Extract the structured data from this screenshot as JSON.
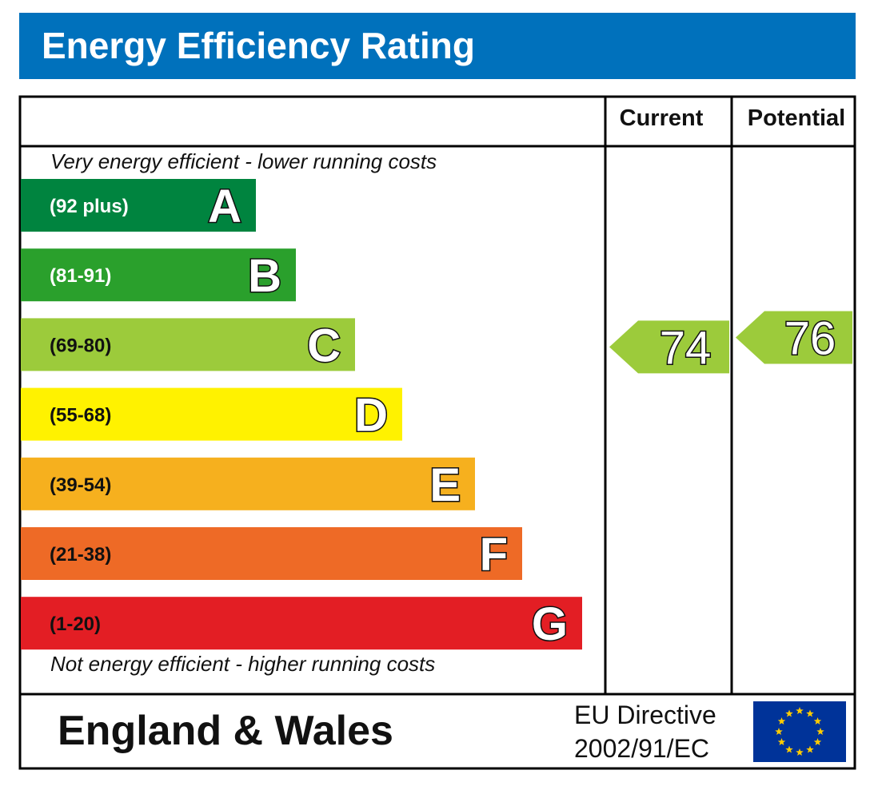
{
  "header": {
    "title": "Energy Efficiency Rating"
  },
  "columns": {
    "current": "Current",
    "potential": "Potential"
  },
  "top_note": "Very energy efficient - lower running costs",
  "bottom_note": "Not energy efficient - higher running costs",
  "footer": {
    "region": "England & Wales",
    "directive_line1": "EU Directive",
    "directive_line2": "2002/91/EC",
    "flag": "eu-flag-icon"
  },
  "chart_data": {
    "type": "bar",
    "title": "Energy Efficiency Rating",
    "bands": [
      {
        "letter": "A",
        "range": "(92 plus)",
        "color": "#00843f",
        "min": 92,
        "max": 100
      },
      {
        "letter": "B",
        "range": "(81-91)",
        "color": "#2aa02c",
        "min": 81,
        "max": 91
      },
      {
        "letter": "C",
        "range": "(69-80)",
        "color": "#9ccb3b",
        "min": 69,
        "max": 80
      },
      {
        "letter": "D",
        "range": "(55-68)",
        "color": "#fff200",
        "min": 55,
        "max": 68
      },
      {
        "letter": "E",
        "range": "(39-54)",
        "color": "#f6b01e",
        "min": 39,
        "max": 54
      },
      {
        "letter": "F",
        "range": "(21-38)",
        "color": "#ee6a26",
        "min": 21,
        "max": 38
      },
      {
        "letter": "G",
        "range": "(1-20)",
        "color": "#e31e24",
        "min": 1,
        "max": 20
      }
    ],
    "current": {
      "value": 74,
      "band": "C",
      "color": "#9ccb3b"
    },
    "potential": {
      "value": 76,
      "band": "C",
      "color": "#9ccb3b"
    }
  }
}
